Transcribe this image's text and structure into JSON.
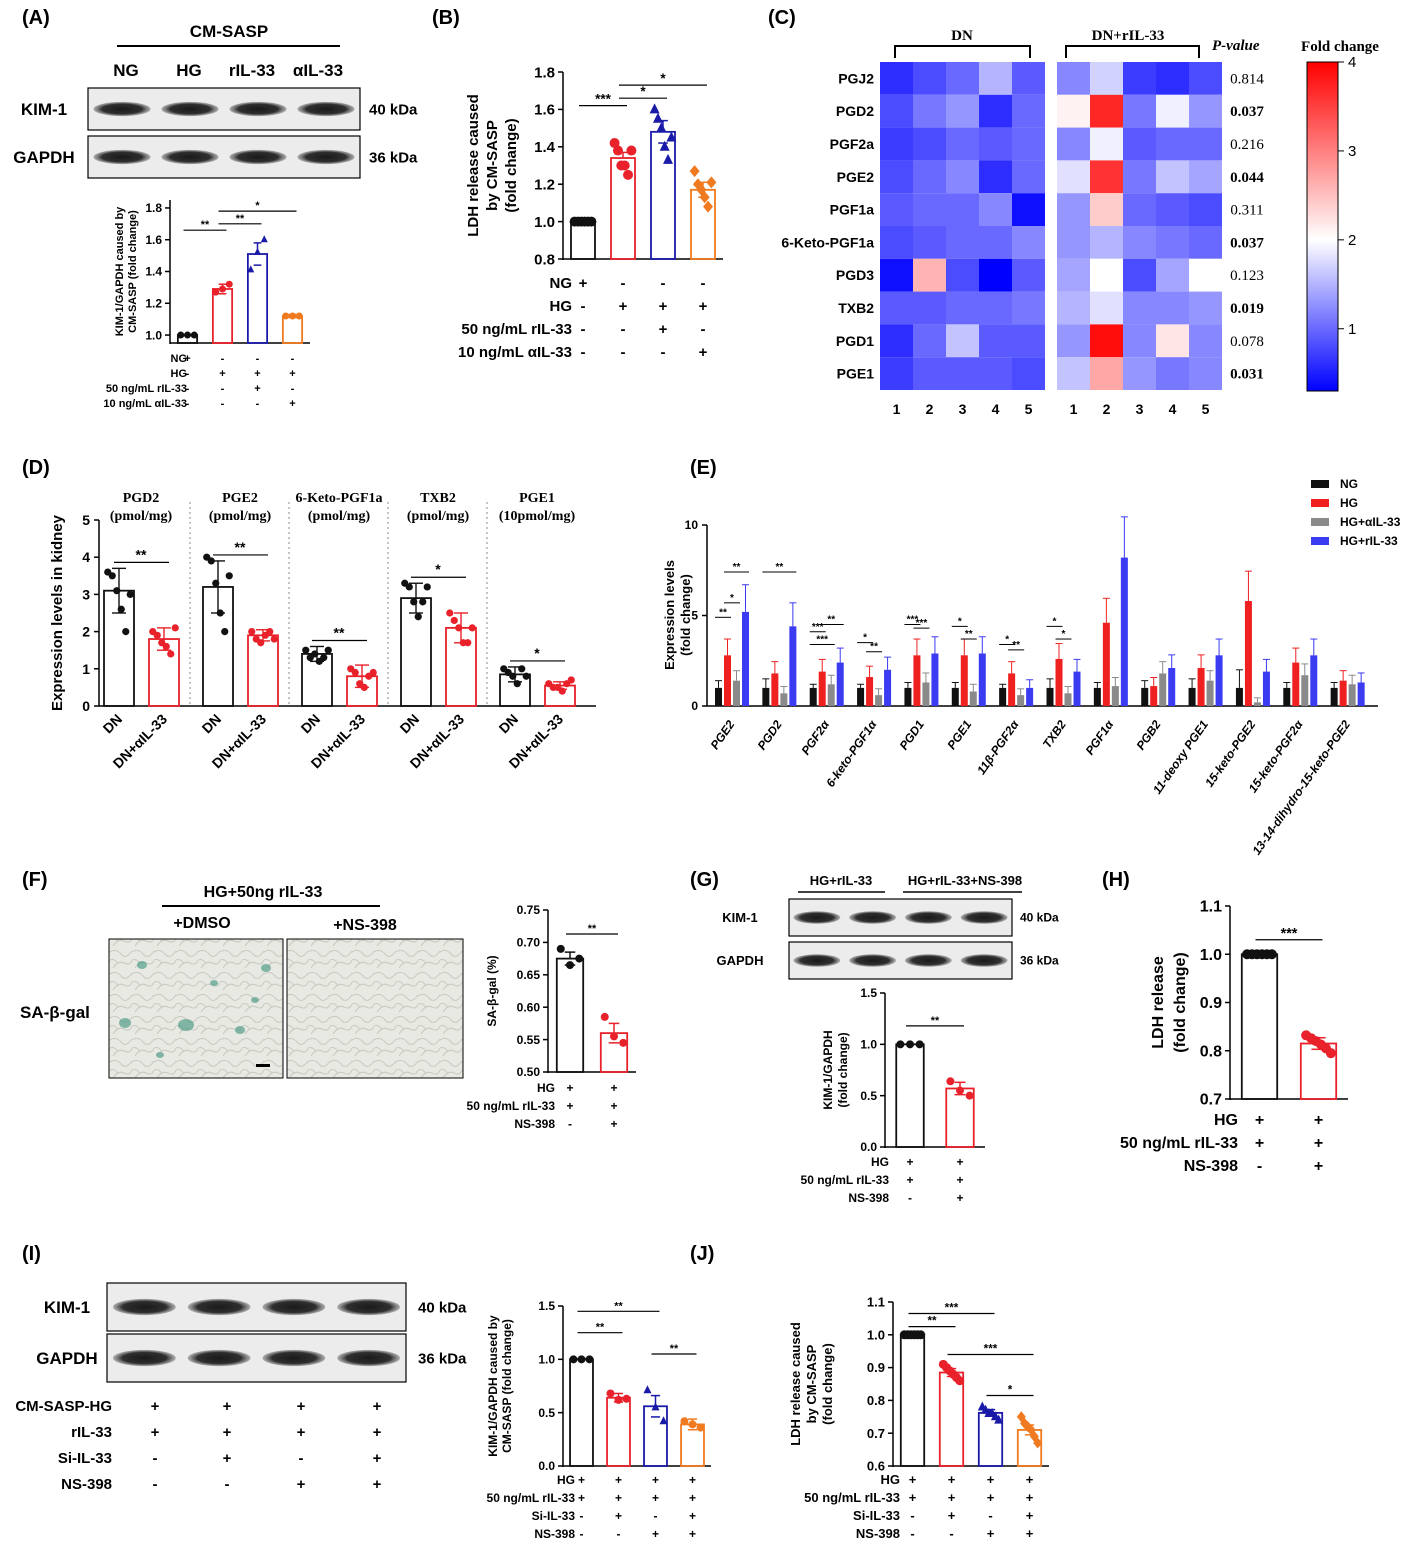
{
  "colors": {
    "white": "#ffffff",
    "red": "#e8212a",
    "blue": "#1a1aa8",
    "orange": "#f07a20",
    "black": "#111111",
    "gray": "#8a8a8a",
    "ehg": "#ef2020",
    "eril": "#3b3bf2"
  },
  "panelA": {
    "letter": "(A)",
    "group": "CM-SASP",
    "lanes": [
      "NG",
      "HG",
      "rIL-33",
      "αIL-33"
    ],
    "blots": [
      {
        "name": "KIM-1",
        "kda": "40 kDa"
      },
      {
        "name": "GAPDH",
        "kda": "36 kDa"
      }
    ],
    "ylabel": [
      "KIM-1/GAPDH caused by",
      "CM-SASP (fold change)"
    ],
    "yticks": [
      "1.0",
      "1.2",
      "1.4",
      "1.6",
      "1.8"
    ],
    "chart_data": {
      "type": "bar",
      "categories": [
        "NG",
        "HG",
        "HG+rIL-33",
        "HG+αIL-33"
      ],
      "values": [
        1.0,
        1.29,
        1.51,
        1.12
      ],
      "errors": [
        0.0,
        0.03,
        0.07,
        0.01
      ],
      "ylim": [
        0.95,
        1.85
      ],
      "points": [
        [
          1.0,
          1.0,
          1.0
        ],
        [
          1.27,
          1.29,
          1.32
        ],
        [
          1.41,
          1.52,
          1.6
        ],
        [
          1.12,
          1.12,
          1.12
        ]
      ]
    },
    "sig": [
      "**",
      "**",
      "*"
    ],
    "rowlabels": [
      "NG",
      "HG",
      "50 ng/mL rIL-33",
      "10 ng/mL αIL-33"
    ],
    "signs": [
      [
        "+",
        "-",
        "-",
        "-"
      ],
      [
        "-",
        "+",
        "+",
        "+"
      ],
      [
        "-",
        "-",
        "+",
        "-"
      ],
      [
        "-",
        "-",
        "-",
        "+"
      ]
    ]
  },
  "panelB": {
    "letter": "(B)",
    "ylabel": [
      "LDH release caused",
      "by CM-SASP",
      "(fold change)"
    ],
    "yticks": [
      "0.8",
      "1.0",
      "1.2",
      "1.4",
      "1.6",
      "1.8"
    ],
    "chart_data": {
      "type": "bar",
      "categories": [
        "NG",
        "HG",
        "HG+rIL-33",
        "HG+αIL-33"
      ],
      "values": [
        1.0,
        1.34,
        1.48,
        1.17
      ],
      "errors": [
        0.0,
        0.03,
        0.06,
        0.04
      ],
      "ylim": [
        0.8,
        1.8
      ],
      "points": [
        [
          1.0,
          1.0,
          1.0,
          1.0,
          1.0,
          1.0
        ],
        [
          1.42,
          1.38,
          1.3,
          1.3,
          1.25,
          1.38
        ],
        [
          1.6,
          1.55,
          1.5,
          1.4,
          1.33,
          1.45
        ],
        [
          1.27,
          1.2,
          1.17,
          1.13,
          1.08,
          1.21
        ]
      ]
    },
    "sig": [
      "***",
      "*",
      "*"
    ],
    "rowlabels": [
      "NG",
      "HG",
      "50 ng/mL rIL-33",
      "10 ng/mL αIL-33"
    ],
    "signs": [
      [
        "+",
        "-",
        "-",
        "-"
      ],
      [
        "-",
        "+",
        "+",
        "+"
      ],
      [
        "-",
        "-",
        "+",
        "-"
      ],
      [
        "-",
        "-",
        "-",
        "+"
      ]
    ]
  },
  "panelC": {
    "letter": "(C)",
    "group1": "DN",
    "group2": "DN+rIL-33",
    "pvalue_header": "P-value",
    "legend_title": "Fold change",
    "legend_ticks": [
      "1",
      "2",
      "3",
      "4"
    ],
    "columns": [
      "1",
      "2",
      "3",
      "4",
      "5",
      "1",
      "2",
      "3",
      "4",
      "5"
    ],
    "chart_data": {
      "type": "heatmap",
      "range": [
        0.3,
        4
      ],
      "rows": [
        "PGJ2",
        "PGD2",
        "PGF2a",
        "PGE2",
        "PGF1a",
        "6-Keto-PGF1a",
        "PGD3",
        "TXB2",
        "PGD1",
        "PGE1"
      ],
      "pvalues": [
        "0.814",
        "0.037",
        "0.216",
        "0.044",
        "0.311",
        "0.037",
        "0.123",
        "0.019",
        "0.078",
        "0.031"
      ],
      "bold": [
        false,
        true,
        false,
        true,
        false,
        true,
        false,
        true,
        false,
        true
      ],
      "values": [
        [
          0.6,
          0.8,
          1.0,
          1.5,
          0.9,
          1.2,
          1.7,
          0.7,
          0.6,
          0.8
        ],
        [
          0.8,
          1.1,
          1.3,
          0.6,
          1.0,
          2.1,
          3.7,
          1.1,
          1.9,
          1.3
        ],
        [
          0.7,
          0.8,
          1.0,
          0.9,
          1.0,
          1.2,
          1.9,
          0.9,
          1.0,
          1.0
        ],
        [
          0.8,
          1.0,
          1.2,
          0.6,
          1.0,
          1.8,
          3.6,
          1.1,
          1.6,
          1.4
        ],
        [
          0.9,
          1.0,
          1.0,
          1.2,
          0.4,
          1.3,
          2.4,
          1.0,
          0.9,
          0.8
        ],
        [
          0.8,
          0.9,
          1.0,
          1.0,
          1.2,
          1.3,
          1.5,
          1.2,
          1.1,
          1.0
        ],
        [
          0.4,
          2.6,
          0.8,
          0.2,
          0.9,
          1.4,
          2.0,
          0.8,
          1.4,
          2.0
        ],
        [
          0.9,
          0.9,
          1.0,
          1.0,
          1.1,
          1.5,
          1.8,
          1.2,
          1.2,
          1.3
        ],
        [
          0.6,
          1.0,
          1.6,
          0.9,
          0.9,
          1.3,
          3.9,
          1.2,
          2.2,
          1.2
        ],
        [
          0.7,
          0.9,
          0.9,
          0.9,
          0.8,
          1.6,
          2.7,
          1.3,
          1.1,
          1.2
        ]
      ]
    }
  },
  "panelD": {
    "letter": "(D)",
    "ylabel": "Expression levels in kidney",
    "yticks": [
      "0",
      "1",
      "2",
      "3",
      "4",
      "5"
    ],
    "chart_data": {
      "type": "bar",
      "ylim": [
        0,
        5
      ],
      "groups": [
        {
          "title": "PGD2",
          "unit": "(pmol/mg)",
          "values": [
            3.1,
            1.8
          ],
          "errors": [
            0.6,
            0.3
          ],
          "sig": "**",
          "points": [
            [
              3.6,
              3.5,
              3.1,
              2.6,
              2.0,
              3.0
            ],
            [
              2.0,
              1.9,
              1.7,
              1.6,
              1.4,
              2.1
            ]
          ]
        },
        {
          "title": "PGE2",
          "unit": "(pmol/mg)",
          "values": [
            3.2,
            1.9
          ],
          "errors": [
            0.7,
            0.15
          ],
          "sig": "**",
          "points": [
            [
              4.0,
              3.9,
              3.3,
              2.5,
              2.0,
              3.5
            ],
            [
              2.0,
              1.8,
              1.7,
              1.9,
              2.0,
              1.8
            ]
          ]
        },
        {
          "title": "6-Keto-PGF1a",
          "unit": "(pmol/mg)",
          "values": [
            1.4,
            0.8
          ],
          "errors": [
            0.2,
            0.3
          ],
          "sig": "**",
          "points": [
            [
              1.5,
              1.3,
              1.4,
              1.2,
              1.3,
              1.5
            ],
            [
              1.0,
              0.9,
              0.6,
              0.5,
              0.8,
              0.9
            ]
          ]
        },
        {
          "title": "TXB2",
          "unit": "(pmol/mg)",
          "values": [
            2.9,
            2.1
          ],
          "errors": [
            0.4,
            0.4
          ],
          "sig": "*",
          "points": [
            [
              3.3,
              3.2,
              2.8,
              2.4,
              2.8,
              3.2
            ],
            [
              2.5,
              2.3,
              2.1,
              1.7,
              1.7,
              2.1
            ]
          ]
        },
        {
          "title": "PGE1",
          "unit": "(10pmol/mg)",
          "values": [
            0.85,
            0.55
          ],
          "errors": [
            0.2,
            0.1
          ],
          "sig": "*",
          "points": [
            [
              1.0,
              0.9,
              0.8,
              0.6,
              1.0,
              0.8
            ],
            [
              0.6,
              0.5,
              0.5,
              0.4,
              0.6,
              0.7
            ]
          ]
        }
      ],
      "xlabels": [
        "DN",
        "DN+αIL-33"
      ]
    }
  },
  "panelE": {
    "letter": "(E)",
    "ylabel": [
      "Expression levels",
      "(fold change)"
    ],
    "yticks": [
      "0",
      "5",
      "10"
    ],
    "legend": [
      "NG",
      "HG",
      "HG+αIL-33",
      "HG+rIL-33"
    ],
    "chart_data": {
      "type": "bar",
      "ylim": [
        0,
        10
      ],
      "categories": [
        "PGE2",
        "PGD2",
        "PGF2α",
        "6-keto-PGF1α",
        "PGD1",
        "PGE1",
        "11β-PGF2α",
        "TXB2",
        "PGF1α",
        "PGB2",
        "11-deoxy PGE1",
        "15-keto-PGE2",
        "15-keto-PGF2α",
        "13-14-dihydro-15-keto-PGE2"
      ],
      "series": [
        {
          "name": "NG",
          "values": [
            1.0,
            1.0,
            1.0,
            1.0,
            1.0,
            1.0,
            1.0,
            1.0,
            1.0,
            1.0,
            1.0,
            1.0,
            1.0,
            1.0
          ],
          "errors": [
            0.4,
            0.5,
            0.2,
            0.2,
            0.3,
            0.3,
            0.2,
            0.5,
            0.3,
            0.4,
            0.5,
            1.0,
            0.3,
            0.3
          ]
        },
        {
          "name": "HG",
          "values": [
            2.8,
            1.8,
            1.9,
            1.6,
            2.8,
            2.8,
            1.8,
            2.6,
            4.6,
            1.1,
            2.1,
            5.8,
            2.4,
            1.4
          ]
        },
        {
          "name": "HG+αIL-33",
          "values": [
            1.4,
            0.7,
            1.2,
            0.6,
            1.3,
            0.8,
            0.6,
            0.7,
            1.1,
            1.8,
            1.4,
            0.2,
            1.7,
            1.2
          ]
        },
        {
          "name": "HG+rIL-33",
          "values": [
            5.2,
            4.4,
            2.4,
            2.0,
            2.9,
            2.9,
            1.0,
            1.9,
            8.2,
            2.1,
            2.8,
            1.9,
            2.8,
            1.3
          ]
        }
      ],
      "sig_labels": [
        "**",
        "**",
        "*",
        "**",
        "***",
        "**",
        "***",
        "*",
        "**",
        "***",
        "***",
        "*",
        "**",
        "*",
        "**",
        "*",
        "*"
      ]
    }
  },
  "panelF": {
    "letter": "(F)",
    "title": "HG+50ng rIL-33",
    "conds": [
      "+DMSO",
      "+NS-398"
    ],
    "stain": "SA-β-gal",
    "ylabel": "SA-β-gal (%)",
    "yticks": [
      "0.50",
      "0.55",
      "0.60",
      "0.65",
      "0.70",
      "0.75"
    ],
    "chart_data": {
      "type": "bar",
      "categories": [
        "DMSO",
        "NS-398"
      ],
      "values": [
        0.675,
        0.56
      ],
      "errors": [
        0.01,
        0.015
      ],
      "ylim": [
        0.5,
        0.75
      ],
      "points": [
        [
          0.69,
          0.665,
          0.675
        ],
        [
          0.585,
          0.555,
          0.545
        ]
      ]
    },
    "sig": "**",
    "rowlabels": [
      "HG",
      "50 ng/mL rIL-33",
      "NS-398"
    ],
    "signs": [
      [
        "+",
        "+"
      ],
      [
        "+",
        "+"
      ],
      [
        "-",
        "+"
      ]
    ]
  },
  "panelG": {
    "letter": "(G)",
    "groups": [
      "HG+rIL-33",
      "HG+rIL-33+NS-398"
    ],
    "blots": [
      {
        "name": "KIM-1",
        "kda": "40 kDa"
      },
      {
        "name": "GAPDH",
        "kda": "36 kDa"
      }
    ],
    "ylabel": [
      "KIM-1/GAPDH",
      "(fold change)"
    ],
    "yticks": [
      "0.0",
      "0.5",
      "1.0",
      "1.5"
    ],
    "chart_data": {
      "type": "bar",
      "categories": [
        "HG+rIL-33",
        "HG+rIL-33+NS-398"
      ],
      "values": [
        1.0,
        0.57
      ],
      "errors": [
        0.0,
        0.06
      ],
      "ylim": [
        0,
        1.5
      ],
      "points": [
        [
          1.0,
          1.0,
          1.0
        ],
        [
          0.64,
          0.55,
          0.5
        ]
      ]
    },
    "sig": "**",
    "rowlabels": [
      "HG",
      "50 ng/mL rIL-33",
      "NS-398"
    ],
    "signs": [
      [
        "+",
        "+"
      ],
      [
        "+",
        "+"
      ],
      [
        "-",
        "+"
      ]
    ]
  },
  "panelH": {
    "letter": "(H)",
    "ylabel": [
      "LDH release",
      "(fold change)"
    ],
    "yticks": [
      "0.7",
      "0.8",
      "0.9",
      "1.0",
      "1.1"
    ],
    "chart_data": {
      "type": "bar",
      "categories": [
        "HG+rIL-33",
        "HG+rIL-33+NS-398"
      ],
      "values": [
        1.0,
        0.815
      ],
      "errors": [
        0.0,
        0.012
      ],
      "ylim": [
        0.7,
        1.1
      ],
      "points": [
        [
          1.0,
          1.0,
          1.0,
          1.0,
          1.0,
          1.0
        ],
        [
          0.832,
          0.826,
          0.82,
          0.813,
          0.805,
          0.795
        ]
      ]
    },
    "sig": "***",
    "rowlabels": [
      "HG",
      "50 ng/mL rIL-33",
      "NS-398"
    ],
    "signs": [
      [
        "+",
        "+"
      ],
      [
        "+",
        "+"
      ],
      [
        "-",
        "+"
      ]
    ]
  },
  "panelI": {
    "letter": "(I)",
    "blots": [
      {
        "name": "KIM-1",
        "kda": "40 kDa"
      },
      {
        "name": "GAPDH",
        "kda": "36 kDa"
      }
    ],
    "blotrows": [
      "CM-SASP-HG",
      "rIL-33",
      "Si-IL-33",
      "NS-398"
    ],
    "blotsigns": [
      [
        "+",
        "+",
        "+",
        "+"
      ],
      [
        "+",
        "+",
        "+",
        "+"
      ],
      [
        "-",
        "+",
        "-",
        "+"
      ],
      [
        "-",
        "-",
        "+",
        "+"
      ]
    ],
    "ylabel": [
      "KIM-1/GAPDH caused by",
      "CM-SASP (fold change)"
    ],
    "yticks": [
      "0.0",
      "0.5",
      "1.0",
      "1.5"
    ],
    "chart_data": {
      "type": "bar",
      "categories": [
        "ctrl",
        "Si-IL-33",
        "NS-398",
        "Si-IL-33+NS-398"
      ],
      "values": [
        1.0,
        0.64,
        0.56,
        0.39
      ],
      "errors": [
        0.0,
        0.04,
        0.1,
        0.05
      ],
      "ylim": [
        0,
        1.5
      ],
      "points": [
        [
          1.0,
          1.0,
          1.0
        ],
        [
          0.68,
          0.62,
          0.63
        ],
        [
          0.71,
          0.55,
          0.42
        ],
        [
          0.42,
          0.39,
          0.36
        ]
      ]
    },
    "sig": [
      "**",
      "**",
      "**"
    ],
    "rowlabels": [
      "HG",
      "50 ng/mL rIL-33",
      "Si-IL-33",
      "NS-398"
    ],
    "signs": [
      [
        "+",
        "+",
        "+",
        "+"
      ],
      [
        "+",
        "+",
        "+",
        "+"
      ],
      [
        "-",
        "+",
        "-",
        "+"
      ],
      [
        "-",
        "-",
        "+",
        "+"
      ]
    ]
  },
  "panelJ": {
    "letter": "(J)",
    "ylabel": [
      "LDH release caused",
      "by CM-SASP",
      "(fold change)"
    ],
    "yticks": [
      "0.6",
      "0.7",
      "0.8",
      "0.9",
      "1.0",
      "1.1"
    ],
    "chart_data": {
      "type": "bar",
      "categories": [
        "ctrl",
        "Si-IL-33",
        "NS-398",
        "Si-IL-33+NS-398"
      ],
      "values": [
        1.0,
        0.885,
        0.762,
        0.71
      ],
      "errors": [
        0.0,
        0.012,
        0.01,
        0.015
      ],
      "ylim": [
        0.6,
        1.1
      ],
      "points": [
        [
          1.0,
          1.0,
          1.0,
          1.0,
          1.0,
          1.0
        ],
        [
          0.91,
          0.9,
          0.89,
          0.88,
          0.87,
          0.86
        ],
        [
          0.78,
          0.77,
          0.76,
          0.76,
          0.75,
          0.74
        ],
        [
          0.75,
          0.73,
          0.72,
          0.71,
          0.69,
          0.67
        ]
      ]
    },
    "sig": [
      "**",
      "***",
      "***",
      "*"
    ],
    "rowlabels": [
      "HG",
      "50 ng/mL rIL-33",
      "Si-IL-33",
      "NS-398"
    ],
    "signs": [
      [
        "+",
        "+",
        "+",
        "+"
      ],
      [
        "+",
        "+",
        "+",
        "+"
      ],
      [
        "-",
        "+",
        "-",
        "+"
      ],
      [
        "-",
        "-",
        "+",
        "+"
      ]
    ]
  }
}
